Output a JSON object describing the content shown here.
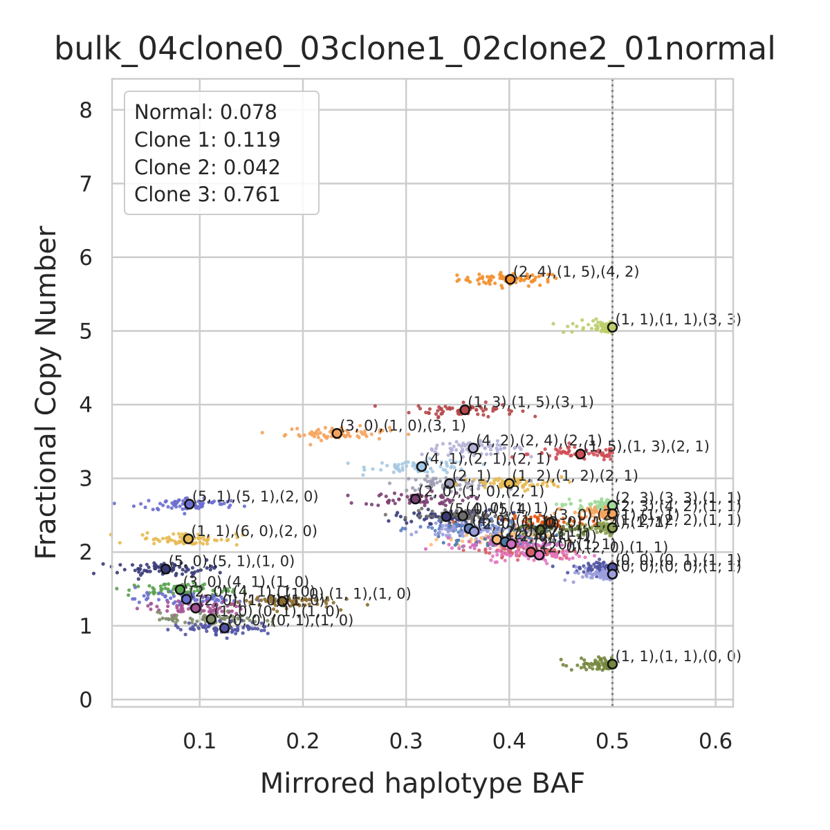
{
  "chart_data": {
    "type": "scatter",
    "title": "bulk_04clone0_03clone1_02clone2_01normal",
    "xlabel": "Mirrored haplotype BAF",
    "ylabel": "Fractional Copy Number",
    "xlim": [
      0.015,
      0.617
    ],
    "ylim": [
      -0.1,
      8.42
    ],
    "xticks": [
      "0.1",
      "0.2",
      "0.3",
      "0.4",
      "0.5",
      "0.6"
    ],
    "yticks": [
      "0",
      "1",
      "2",
      "3",
      "4",
      "5",
      "6",
      "7",
      "8"
    ],
    "grid": true,
    "reference_line": {
      "x": 0.5,
      "style": "dotted"
    },
    "purity_box": {
      "placement": "top-left",
      "lines": [
        "Normal: 0.078",
        "Clone 1: 0.119",
        "Clone 2: 0.042",
        "Clone 3: 0.761"
      ]
    },
    "clusters": [
      {
        "color": "#f28e2b",
        "baf": 0.401,
        "cn": 5.7,
        "label": "(2, 4),(1, 5),(4, 2)"
      },
      {
        "color": "#bcce6d",
        "baf": 0.5,
        "cn": 5.05,
        "label": "(1, 1),(1, 1),(3, 3)"
      },
      {
        "color": "#b5484a",
        "baf": 0.357,
        "cn": 3.93,
        "label": "(1, 3),(1, 5),(3, 1)"
      },
      {
        "color": "#f5a35c",
        "baf": 0.233,
        "cn": 3.61,
        "label": "(3, 0),(1, 0),(3, 1)"
      },
      {
        "color": "#b3b0d6",
        "baf": 0.365,
        "cn": 3.41,
        "label": "(4, 2),(2, 4),(2, 1)"
      },
      {
        "color": "#cf4e55",
        "baf": 0.469,
        "cn": 3.33,
        "label": "(1, 5),(1, 3),(2, 1)"
      },
      {
        "color": "#a6c9e2",
        "baf": 0.315,
        "cn": 3.16,
        "label": "(4, 1),(2, 1),(2, 1)"
      },
      {
        "color": "#9d9db4",
        "baf": 0.342,
        "cn": 2.93,
        "label": "(2, 1)"
      },
      {
        "color": "#e7ba52",
        "baf": 0.4,
        "cn": 2.93,
        "label": "(1, 2),(1, 2),(2, 1)"
      },
      {
        "color": "#6b6ecf",
        "baf": 0.09,
        "cn": 2.65,
        "label": "(5, 1),(5, 1),(2, 0)"
      },
      {
        "color": "#7b4173",
        "baf": 0.309,
        "cn": 2.72,
        "label": "(2, 0),(1, 0),(2, 1)"
      },
      {
        "color": "#a1d99b",
        "baf": 0.5,
        "cn": 2.63,
        "label": "(2, 3),(3, 3),(1, 1)"
      },
      {
        "color": "#f5a35c",
        "baf": 0.5,
        "cn": 2.52,
        "label": "(2, 3),(4, 2),(1, 1)"
      },
      {
        "color": "#393b79",
        "baf": 0.339,
        "cn": 2.48,
        "label": "(5, 0),(5, 4)"
      },
      {
        "color": "#6d6d6d",
        "baf": 0.355,
        "cn": 2.49,
        "label": "(4, 0),(1, 1)"
      },
      {
        "color": "#e6550d",
        "baf": 0.44,
        "cn": 2.4,
        "label": "(3, 0),(2, 1),(1, 1)"
      },
      {
        "color": "#8ca252",
        "baf": 0.5,
        "cn": 2.33,
        "label": "(1, 2),(2, 2),(1, 1)"
      },
      {
        "color": "#637939",
        "baf": 0.43,
        "cn": 2.3,
        "label": "(2, 0),(1, 1),(1, 1)"
      },
      {
        "color": "#5e7fc1",
        "baf": 0.361,
        "cn": 2.32,
        "label": "(4, 0),(1, 1)"
      },
      {
        "color": "#9c9ede",
        "baf": 0.366,
        "cn": 2.28,
        "label": "(2, 0),(1, 1)"
      },
      {
        "color": "#e7ba52",
        "baf": 0.089,
        "cn": 2.18,
        "label": "(1, 1),(6, 0),(2, 0)"
      },
      {
        "color": "#ffbb78",
        "baf": 0.388,
        "cn": 2.17,
        "label": "(2, 0),(2, 1)"
      },
      {
        "color": "#4e79a7",
        "baf": 0.396,
        "cn": 2.14,
        "label": "(2, 1),(1, 1)"
      },
      {
        "color": "#ce6dbd",
        "baf": 0.402,
        "cn": 2.11,
        "label": "(2, 0),(1, 1)"
      },
      {
        "color": "#d6616b",
        "baf": 0.421,
        "cn": 2.0,
        "label": "(2, 0),(1, 1)"
      },
      {
        "color": "#e377c2",
        "baf": 0.429,
        "cn": 1.96,
        "label": "(2, 0),(2, 0),(1, 1)"
      },
      {
        "color": "#5254a3",
        "baf": 0.5,
        "cn": 1.79,
        "label": "(0, 0),(0, 1),(1, 1)"
      },
      {
        "color": "#9c9ede",
        "baf": 0.5,
        "cn": 1.7,
        "label": "(0, 0),(0, 0),(1, 1)"
      },
      {
        "color": "#393b79",
        "baf": 0.067,
        "cn": 1.77,
        "label": "(5, 0),(5, 1),(1, 0)"
      },
      {
        "color": "#59a14f",
        "baf": 0.081,
        "cn": 1.49,
        "label": "(3, 0),(4, 1),(1, 0)"
      },
      {
        "color": "#6b6ecf",
        "baf": 0.087,
        "cn": 1.36,
        "label": "(2, 0),(4, 1),(1, 0)"
      },
      {
        "color": "#8c6d31",
        "baf": 0.18,
        "cn": 1.33,
        "label": "(1, 0),(1, 1),(1, 0)"
      },
      {
        "color": "#a55194",
        "baf": 0.096,
        "cn": 1.24,
        "label": "(2, 0),(1, 0),(1, 0)"
      },
      {
        "color": "#7f8c6b",
        "baf": 0.111,
        "cn": 1.09,
        "label": "(1, 0),(0, 1),(1, 0)"
      },
      {
        "color": "#5254a3",
        "baf": 0.124,
        "cn": 0.97,
        "label": "(0, 0),(0, 1),(1, 0)"
      },
      {
        "color": "#75873d",
        "baf": 0.5,
        "cn": 0.48,
        "label": "(1, 1),(1, 1),(0, 0)"
      }
    ]
  }
}
